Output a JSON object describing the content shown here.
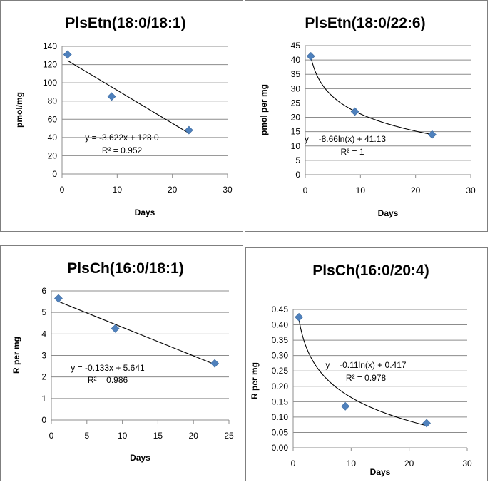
{
  "chart_data": [
    {
      "type": "scatter",
      "title": "PlsEtn(18:0/18:1)",
      "xlabel": "Days",
      "ylabel": "pmol/mg",
      "xlim": [
        0,
        30
      ],
      "xticks": [
        0,
        10,
        20,
        30
      ],
      "ylim": [
        0,
        140
      ],
      "yticks": [
        0,
        20,
        40,
        60,
        80,
        100,
        120,
        140
      ],
      "ydecimals": 0,
      "grid": true,
      "points": [
        {
          "x": 1,
          "y": 131
        },
        {
          "x": 9,
          "y": 85
        },
        {
          "x": 23,
          "y": 48
        }
      ],
      "trendline": {
        "kind": "linear",
        "slope": -3.622,
        "intercept": 128.0,
        "x_from": 1,
        "x_to": 23
      },
      "equation": "y = -3.622x + 128.0",
      "r2": "R² = 0.952",
      "colors": {
        "marker": "#4f81bd"
      }
    },
    {
      "type": "scatter",
      "title": "PlsEtn(18:0/22:6)",
      "xlabel": "Days",
      "ylabel": "pmol per mg",
      "xlim": [
        0,
        30
      ],
      "xticks": [
        0,
        10,
        20,
        30
      ],
      "ylim": [
        0,
        45
      ],
      "yticks": [
        0,
        5,
        10,
        15,
        20,
        25,
        30,
        35,
        40,
        45
      ],
      "ydecimals": 0,
      "grid": true,
      "points": [
        {
          "x": 1,
          "y": 41.3
        },
        {
          "x": 9,
          "y": 22
        },
        {
          "x": 23,
          "y": 14
        }
      ],
      "trendline": {
        "kind": "log",
        "a": -8.66,
        "b": 41.13,
        "x_from": 1,
        "x_to": 23
      },
      "equation": "y = -8.66ln(x) + 41.13",
      "r2": "R² = 1",
      "colors": {
        "marker": "#4f81bd"
      }
    },
    {
      "type": "scatter",
      "title": "PlsCh(16:0/18:1)",
      "xlabel": "Days",
      "ylabel": "R per mg",
      "xlim": [
        0,
        25
      ],
      "xticks": [
        0,
        5,
        10,
        15,
        20,
        25
      ],
      "ylim": [
        0,
        6
      ],
      "yticks": [
        0,
        1,
        2,
        3,
        4,
        5,
        6
      ],
      "ydecimals": 0,
      "grid": true,
      "points": [
        {
          "x": 1,
          "y": 5.65
        },
        {
          "x": 9,
          "y": 4.25
        },
        {
          "x": 23,
          "y": 2.63
        }
      ],
      "trendline": {
        "kind": "linear",
        "slope": -0.133,
        "intercept": 5.641,
        "x_from": 1,
        "x_to": 23
      },
      "equation": "y = -0.133x + 5.641",
      "r2": "R² = 0.986",
      "colors": {
        "marker": "#4f81bd"
      }
    },
    {
      "type": "scatter",
      "title": "PlsCh(16:0/20:4)",
      "xlabel": "Days",
      "ylabel": "R per mg",
      "xlim": [
        0,
        30
      ],
      "xticks": [
        0,
        10,
        20,
        30
      ],
      "ylim": [
        0,
        0.45
      ],
      "yticks": [
        0,
        0.05,
        0.1,
        0.15,
        0.2,
        0.25,
        0.3,
        0.35,
        0.4,
        0.45
      ],
      "ydecimals": 2,
      "grid": true,
      "points": [
        {
          "x": 1,
          "y": 0.425
        },
        {
          "x": 9,
          "y": 0.135
        },
        {
          "x": 23,
          "y": 0.08
        }
      ],
      "trendline": {
        "kind": "log",
        "a": -0.11,
        "b": 0.417,
        "x_from": 1,
        "x_to": 23
      },
      "equation": "y = -0.11ln(x) + 0.417",
      "r2": "R² = 0.978",
      "colors": {
        "marker": "#4f81bd"
      }
    }
  ]
}
